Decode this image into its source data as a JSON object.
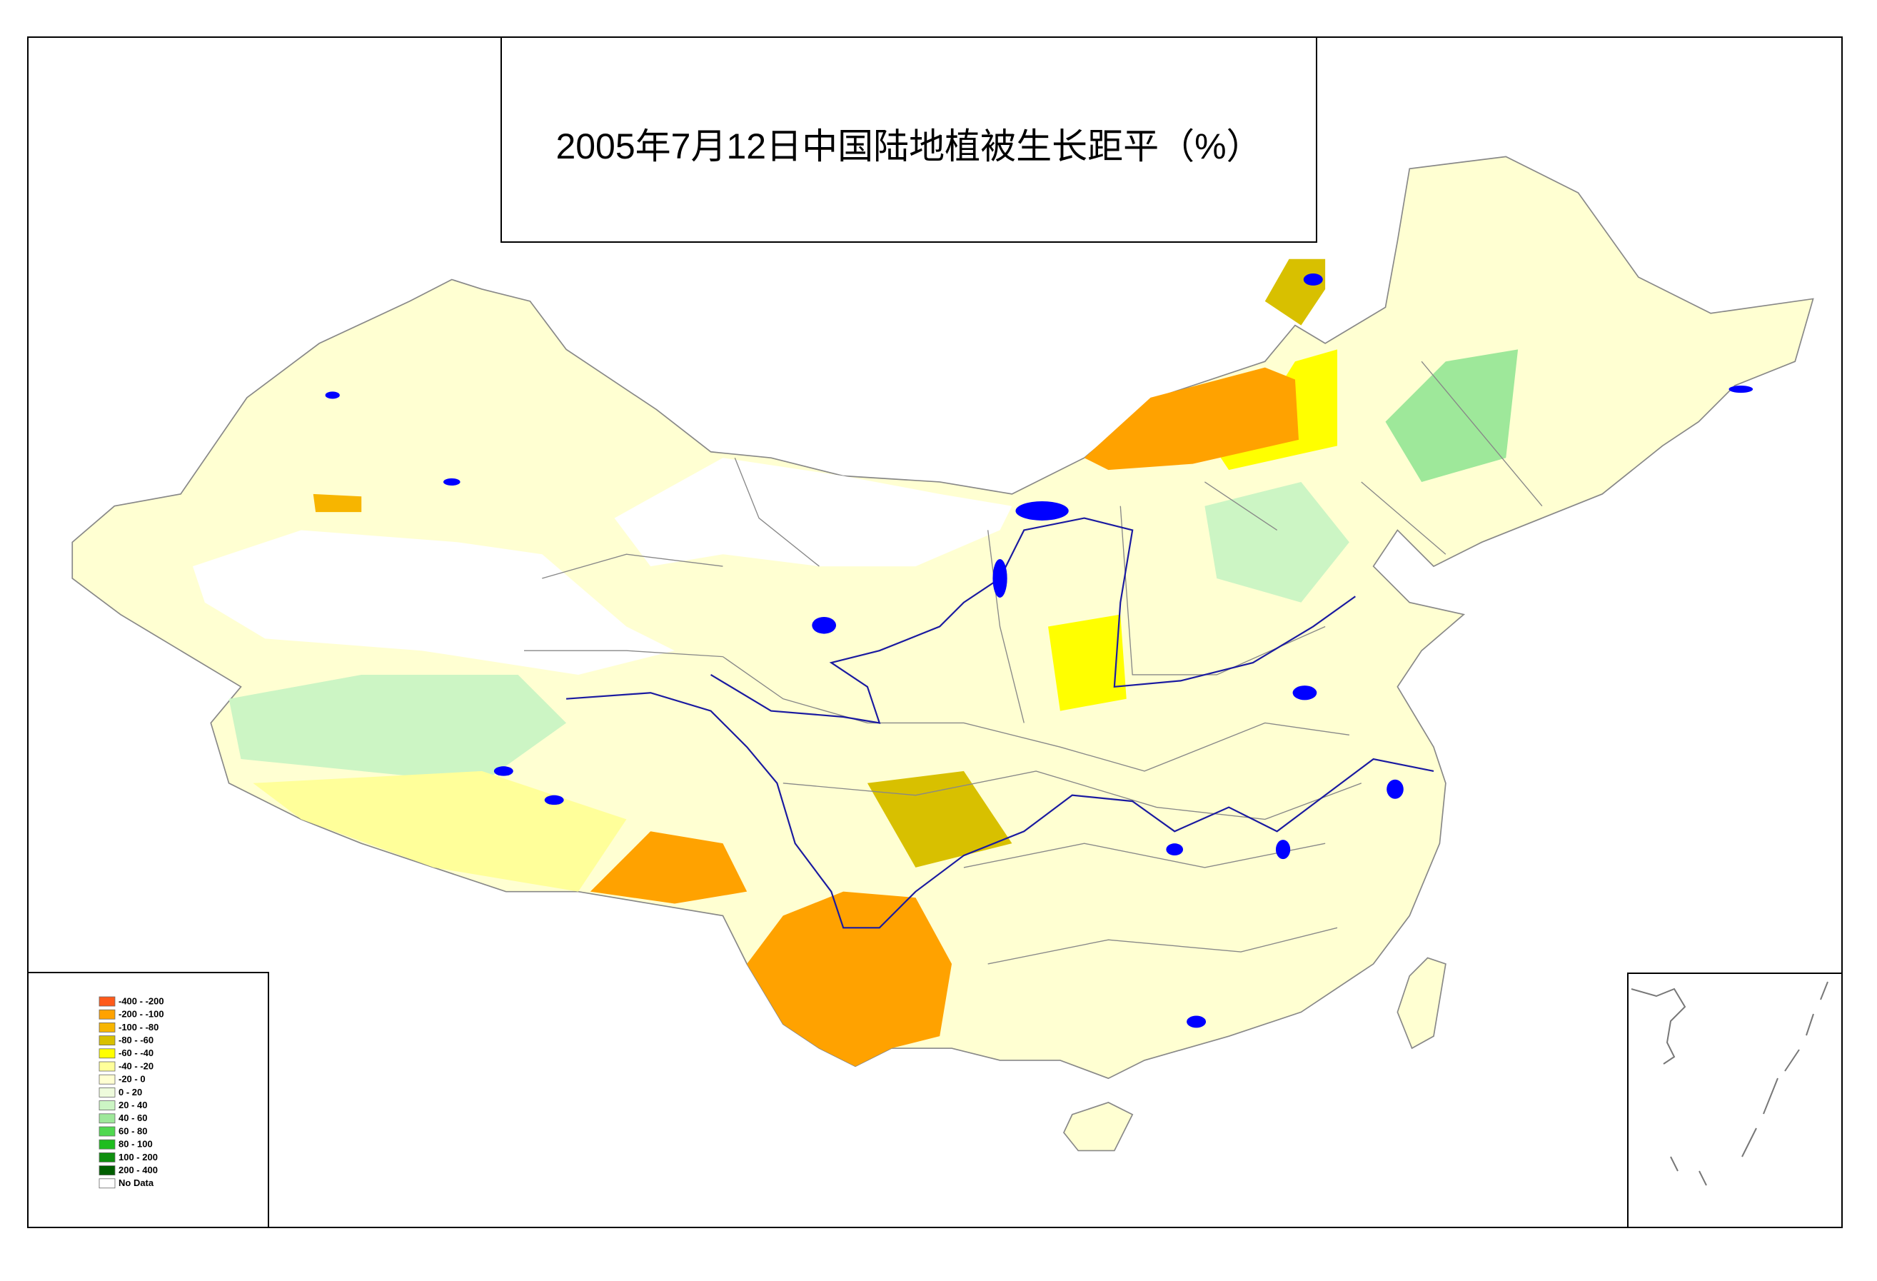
{
  "title": "2005年7月12日中国陆地植被生长距平（%）",
  "legend": {
    "items": [
      {
        "label": "-400 - -200",
        "color": "#ff5a1a"
      },
      {
        "label": "-200 - -100",
        "color": "#ffa200"
      },
      {
        "label": "-100 - -80",
        "color": "#f7b500"
      },
      {
        "label": "-80 - -60",
        "color": "#d8c000"
      },
      {
        "label": "-60 - -40",
        "color": "#ffff00"
      },
      {
        "label": "-40 - -20",
        "color": "#ffff9a"
      },
      {
        "label": "-20 - 0",
        "color": "#ffffd2"
      },
      {
        "label": "0 - 20",
        "color": "#eefbdc"
      },
      {
        "label": "20 - 40",
        "color": "#ccf5c4"
      },
      {
        "label": "40 - 60",
        "color": "#9ee89a"
      },
      {
        "label": "60 - 80",
        "color": "#4fd84f"
      },
      {
        "label": "80 - 100",
        "color": "#1fbd1f"
      },
      {
        "label": "100 - 200",
        "color": "#0f8f0f"
      },
      {
        "label": "200 - 400",
        "color": "#005e00"
      },
      {
        "label": "No Data",
        "color": "#ffffff"
      }
    ]
  }
}
